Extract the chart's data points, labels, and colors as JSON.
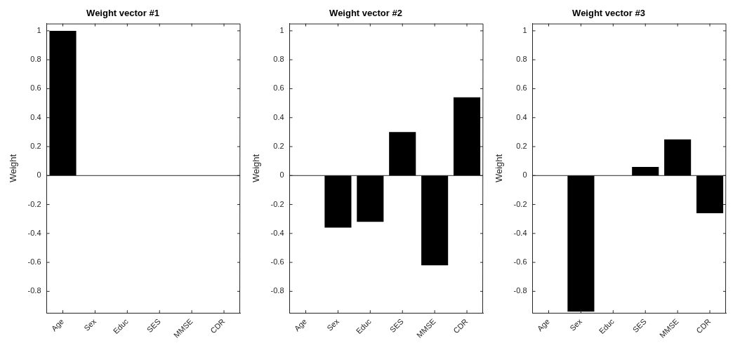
{
  "chart_data": [
    {
      "type": "bar",
      "title": "Weight vector #1",
      "ylabel": "Weight",
      "categories": [
        "Age",
        "Sex",
        "Educ",
        "SES",
        "MMSE",
        "CDR"
      ],
      "values": [
        1,
        0,
        0,
        0,
        0,
        0
      ],
      "color": "#000000",
      "ylim": [
        -0.95,
        1.05
      ],
      "yticks": [
        -0.8,
        -0.6,
        -0.4,
        -0.2,
        0,
        0.2,
        0.4,
        0.6,
        0.8,
        1
      ],
      "ref_lines": [
        {
          "axis": "y",
          "value": 0,
          "color": "#262626"
        }
      ]
    },
    {
      "type": "bar",
      "title": "Weight vector #2",
      "ylabel": "Weight",
      "categories": [
        "Age",
        "Sex",
        "Educ",
        "SES",
        "MMSE",
        "CDR"
      ],
      "values": [
        0,
        -0.36,
        -0.32,
        0.3,
        -0.62,
        0.54
      ],
      "color": "#000000",
      "ylim": [
        -0.95,
        1.05
      ],
      "yticks": [
        -0.8,
        -0.6,
        -0.4,
        -0.2,
        0,
        0.2,
        0.4,
        0.6,
        0.8,
        1
      ],
      "ref_lines": [
        {
          "axis": "y",
          "value": 0,
          "color": "#262626"
        }
      ]
    },
    {
      "type": "bar",
      "title": "Weight vector #3",
      "ylabel": "Weight",
      "categories": [
        "Age",
        "Sex",
        "Educ",
        "SES",
        "MMSE",
        "CDR"
      ],
      "values": [
        0,
        -0.94,
        0,
        0.06,
        0.25,
        -0.26
      ],
      "color": "#000000",
      "ylim": [
        -0.95,
        1.05
      ],
      "yticks": [
        -0.8,
        -0.6,
        -0.4,
        -0.2,
        0,
        0.2,
        0.4,
        0.6,
        0.8,
        1
      ],
      "ref_lines": [
        {
          "axis": "y",
          "value": 0,
          "color": "#262626"
        }
      ]
    }
  ]
}
